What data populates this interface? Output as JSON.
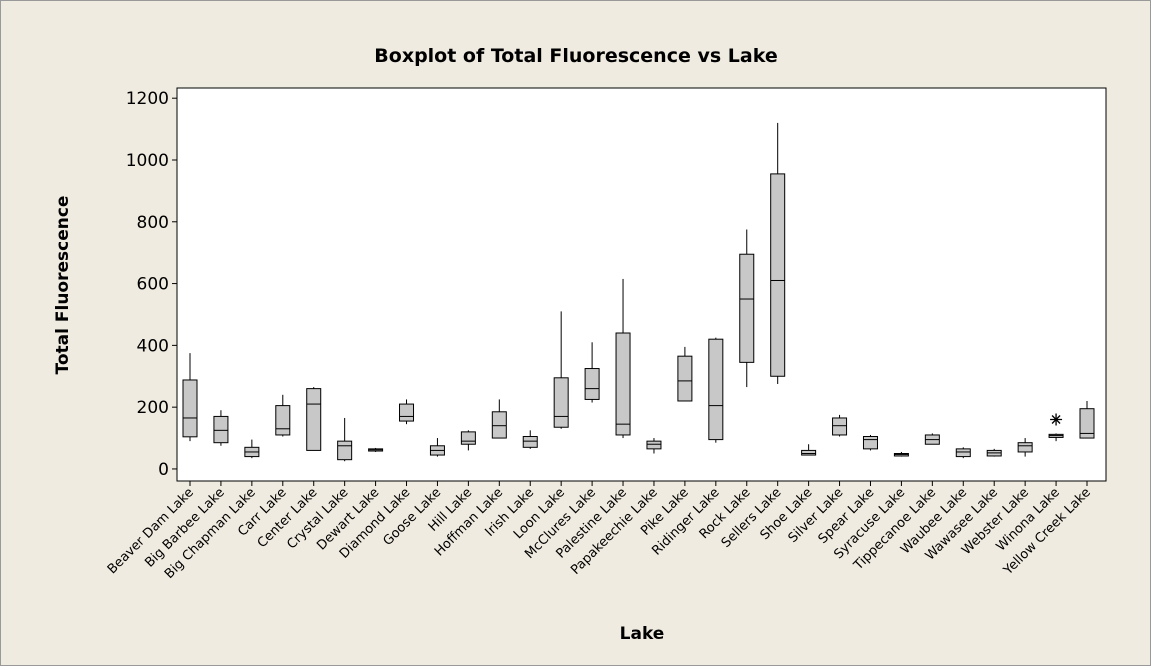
{
  "chart_data": {
    "type": "box",
    "title": "Boxplot of Total Fluorescence vs Lake",
    "x_label": "Lake",
    "y_label": "Total Fluorescence",
    "categories": [
      "Beaver Dam Lake",
      "Big Barbee Lake",
      "Big Chapman Lake",
      "Carr Lake",
      "Center Lake",
      "Crystal Lake",
      "Dewart Lake",
      "Diamond Lake",
      "Goose Lake",
      "Hill Lake",
      "Hoffman Lake",
      "Irish Lake",
      "Loon Lake",
      "McClures Lake",
      "Palestine Lake",
      "Papakeechie Lake",
      "Pike Lake",
      "Ridinger Lake",
      "Rock Lake",
      "Sellers Lake",
      "Shoe Lake",
      "Silver Lake",
      "Spear Lake",
      "Syracuse Lake",
      "Tippecanoe Lake",
      "Waubee Lake",
      "Wawasee Lake",
      "Webster Lake",
      "Winona Lake",
      "Yellow Creek Lake"
    ],
    "min": [
      90,
      75,
      35,
      105,
      60,
      25,
      55,
      145,
      40,
      60,
      100,
      65,
      130,
      215,
      100,
      50,
      220,
      85,
      265,
      275,
      45,
      105,
      60,
      40,
      80,
      35,
      40,
      40,
      90,
      100
    ],
    "q1": [
      104,
      85,
      40,
      110,
      60,
      30,
      58,
      155,
      45,
      80,
      100,
      70,
      135,
      225,
      110,
      65,
      220,
      95,
      345,
      300,
      45,
      110,
      65,
      42,
      80,
      40,
      42,
      55,
      102,
      100
    ],
    "median": [
      165,
      125,
      55,
      130,
      210,
      75,
      62,
      170,
      60,
      90,
      140,
      90,
      170,
      260,
      145,
      80,
      285,
      205,
      550,
      610,
      50,
      140,
      95,
      47,
      95,
      55,
      52,
      75,
      108,
      115
    ],
    "q3": [
      288,
      170,
      70,
      205,
      260,
      90,
      65,
      210,
      75,
      120,
      185,
      105,
      295,
      325,
      440,
      90,
      365,
      420,
      695,
      955,
      60,
      165,
      105,
      50,
      110,
      65,
      60,
      85,
      112,
      195
    ],
    "max": [
      375,
      190,
      95,
      240,
      265,
      165,
      68,
      225,
      100,
      125,
      225,
      125,
      510,
      410,
      615,
      100,
      395,
      425,
      775,
      1120,
      80,
      175,
      110,
      55,
      115,
      70,
      65,
      100,
      115,
      220
    ],
    "outliers": [
      [],
      [],
      [],
      [],
      [],
      [],
      [],
      [],
      [],
      [],
      [],
      [],
      [],
      [],
      [],
      [],
      [],
      [],
      [],
      [],
      [],
      [],
      [],
      [],
      [],
      [],
      [],
      [],
      [
        160
      ],
      []
    ],
    "color": "#c8c8c8",
    "ylim": [
      -39,
      1233
    ],
    "yticks": [
      0,
      200,
      400,
      600,
      800,
      1000,
      1200
    ]
  }
}
